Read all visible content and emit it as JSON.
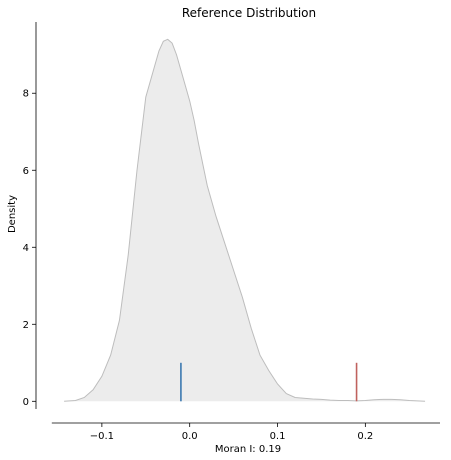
{
  "chart_data": {
    "type": "area",
    "title": "Reference Distribution",
    "xlabel": "Moran I: 0.19",
    "ylabel": "Density",
    "xlim": [
      -0.175,
      0.285
    ],
    "ylim": [
      -0.2,
      9.85
    ],
    "x_ticks": [
      -0.1,
      0.0,
      0.1,
      0.2
    ],
    "x_tick_labels": [
      "−0.1",
      "0.0",
      "0.1",
      "0.2"
    ],
    "y_ticks": [
      0,
      2,
      4,
      6,
      8
    ],
    "y_tick_labels": [
      "0",
      "2",
      "4",
      "6",
      "8"
    ],
    "grid": false,
    "series": [
      {
        "kind": "kde",
        "fill_color": "#ececec",
        "line_color": "#bdbdbd",
        "x": [
          -0.143,
          -0.13,
          -0.12,
          -0.11,
          -0.1,
          -0.09,
          -0.08,
          -0.07,
          -0.06,
          -0.05,
          -0.04,
          -0.035,
          -0.03,
          -0.025,
          -0.02,
          -0.015,
          -0.01,
          -0.005,
          0.0,
          0.005,
          0.01,
          0.02,
          0.03,
          0.04,
          0.05,
          0.06,
          0.07,
          0.08,
          0.09,
          0.1,
          0.11,
          0.12,
          0.13,
          0.14,
          0.15,
          0.16,
          0.17,
          0.18,
          0.19,
          0.2,
          0.21,
          0.22,
          0.23,
          0.24,
          0.25,
          0.268
        ],
        "y": [
          0.0,
          0.02,
          0.1,
          0.3,
          0.65,
          1.2,
          2.1,
          3.8,
          6.0,
          7.9,
          8.7,
          9.1,
          9.35,
          9.4,
          9.3,
          9.0,
          8.6,
          8.2,
          7.8,
          7.3,
          6.7,
          5.6,
          4.8,
          4.1,
          3.4,
          2.7,
          1.9,
          1.2,
          0.8,
          0.45,
          0.2,
          0.1,
          0.08,
          0.06,
          0.05,
          0.03,
          0.02,
          0.02,
          0.01,
          0.02,
          0.04,
          0.05,
          0.05,
          0.04,
          0.02,
          0.0
        ]
      }
    ],
    "markers": [
      {
        "name": "expected",
        "x": -0.01,
        "y_top": 1.0,
        "color": "#3b78b0"
      },
      {
        "name": "observed",
        "x": 0.19,
        "y_top": 1.0,
        "color": "#c0625e"
      }
    ]
  }
}
